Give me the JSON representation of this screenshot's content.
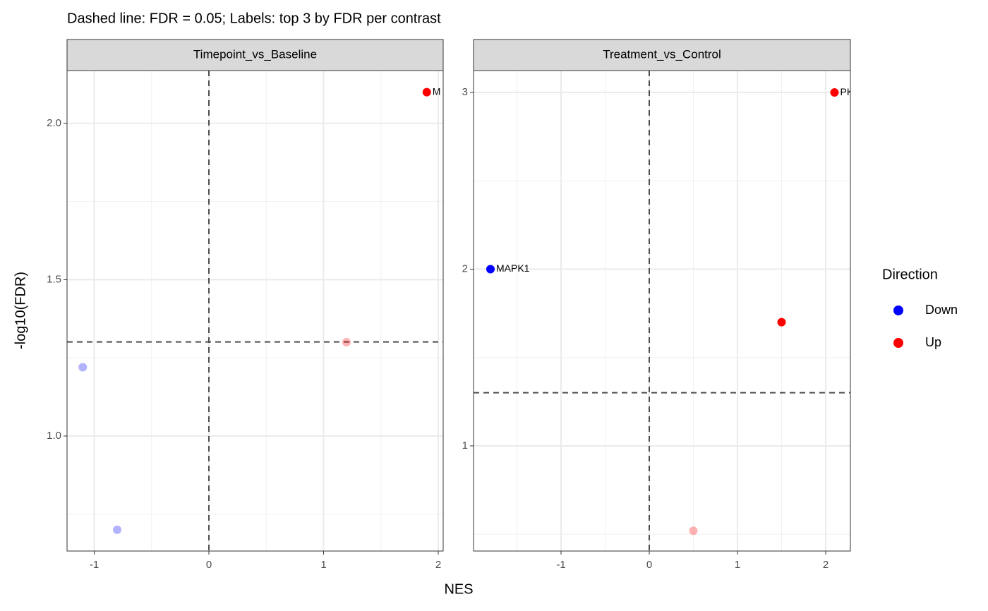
{
  "chart_data": {
    "type": "facet",
    "title": "Dashed line: FDR = 0.05; Labels: top 3 by FDR per contrast",
    "x_label": "NES",
    "y_label": "-log10(FDR)",
    "legend_title": "Direction",
    "series": [
      {
        "name": "Down",
        "color": "#0000ff"
      },
      {
        "name": "Up",
        "color": "#ff0000"
      }
    ],
    "hline": 1.30103,
    "vline": 0,
    "panels": [
      {
        "type": "scatter",
        "title": "Timepoint_vs_Baseline",
        "xlim": [
          -1.237,
          2.043
        ],
        "ylim": [
          0.632,
          2.169
        ],
        "xticks": [
          -1,
          0,
          1,
          2
        ],
        "yticks": [
          {
            "value": 1,
            "label": "1.0"
          },
          1.5,
          {
            "value": 2,
            "label": "2.0"
          }
        ],
        "x": [
          1.9,
          1.2,
          -1.1,
          -0.8
        ],
        "values": [
          2.1,
          1.3,
          1.22,
          0.7
        ],
        "group": [
          1,
          1,
          0,
          0
        ],
        "significant": [
          true,
          false,
          false,
          false
        ],
        "labels": [
          "M",
          null,
          null,
          null
        ]
      },
      {
        "type": "scatter",
        "title": "Treatment_vs_Control",
        "xlim": [
          -1.992,
          2.28
        ],
        "ylim": [
          0.405,
          3.124
        ],
        "xticks": [
          -1,
          0,
          1,
          2
        ],
        "yticks": [
          1,
          2,
          3
        ],
        "x": [
          2.1,
          -1.8,
          1.5,
          0.5
        ],
        "values": [
          3.0,
          2.0,
          1.7,
          0.52
        ],
        "group": [
          1,
          0,
          1,
          1
        ],
        "significant": [
          true,
          true,
          true,
          false
        ],
        "labels": [
          "PK",
          "MAPK1",
          null,
          null
        ]
      }
    ]
  }
}
